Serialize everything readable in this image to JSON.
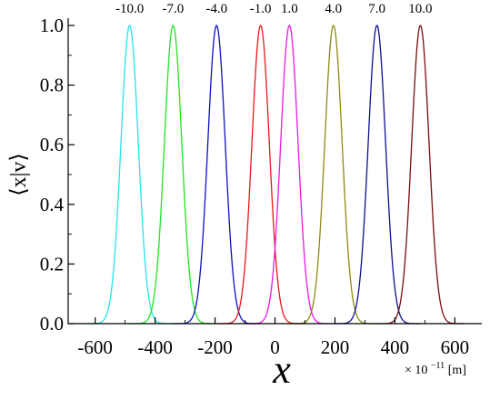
{
  "chart_data": {
    "type": "line",
    "xlabel": "x",
    "ylabel": "⟨x|v⟩",
    "x_unit_note": "× 10",
    "x_unit_exponent": "−11",
    "x_unit_suffix": "[m]",
    "xlim": [
      -690,
      690
    ],
    "ylim": [
      0.0,
      1.0
    ],
    "x_ticks": [
      -600,
      -400,
      -200,
      0,
      200,
      400,
      600
    ],
    "x_tick_labels": [
      "-600",
      "-400",
      "-200",
      "0",
      "200",
      "400",
      "600"
    ],
    "y_ticks": [
      0.0,
      0.2,
      0.4,
      0.6,
      0.8,
      1.0
    ],
    "y_tick_labels": [
      "0.0",
      "0.2",
      "0.4",
      "0.6",
      "0.8",
      "1.0"
    ],
    "grid": false,
    "legend": "none",
    "peak_width_sigma": 29,
    "series": [
      {
        "label": "-10.0",
        "center": -485,
        "color": "#22e5ea"
      },
      {
        "label": "-7.0",
        "center": -340,
        "color": "#1fe61f"
      },
      {
        "label": "-4.0",
        "center": -195,
        "color": "#1010c0"
      },
      {
        "label": "-1.0",
        "center": -48,
        "color": "#e51a1a"
      },
      {
        "label": "1.0",
        "center": 48,
        "color": "#e51ae5"
      },
      {
        "label": "4.0",
        "center": 195,
        "color": "#8e8a12"
      },
      {
        "label": "7.0",
        "center": 340,
        "color": "#101090"
      },
      {
        "label": "10.0",
        "center": 485,
        "color": "#7a0e0e"
      }
    ]
  }
}
